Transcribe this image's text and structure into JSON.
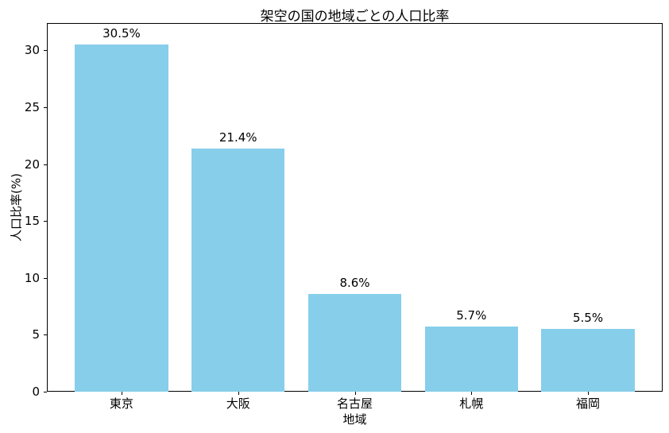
{
  "chart_data": {
    "type": "bar",
    "title": "架空の国の地域ごとの人口比率",
    "xlabel": "地域",
    "ylabel": "人口比率(%)",
    "categories": [
      "東京",
      "大阪",
      "名古屋",
      "札幌",
      "福岡"
    ],
    "values": [
      30.5,
      21.4,
      8.6,
      5.7,
      5.5
    ],
    "value_labels": [
      "30.5%",
      "21.4%",
      "8.6%",
      "5.7%",
      "5.5%"
    ],
    "yticks": [
      0,
      5,
      10,
      15,
      20,
      25,
      30
    ],
    "ylim": [
      0,
      32.4
    ],
    "xlim": [
      -0.64,
      4.64
    ],
    "bar_width_units": 0.8,
    "bar_color": "#87CEEB",
    "text_color": "#000000",
    "background_color": "#ffffff",
    "grid": false,
    "legend_position": "none"
  }
}
